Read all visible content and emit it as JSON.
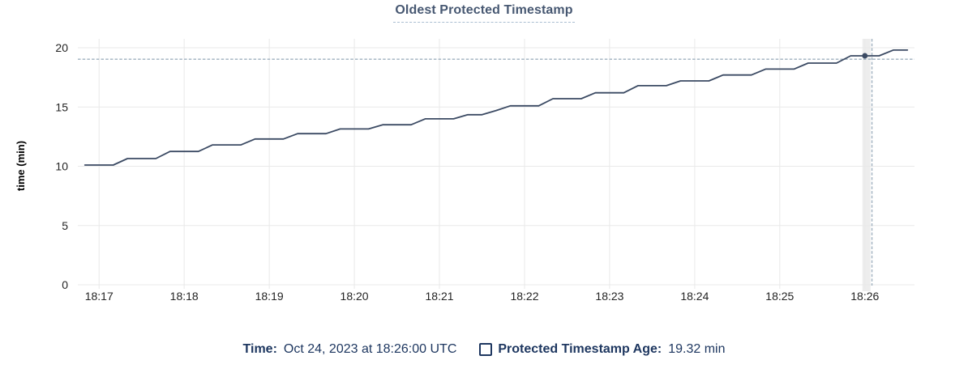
{
  "title": "Oldest Protected Timestamp",
  "footer": {
    "time_label": "Time:",
    "time_value": "Oct 24, 2023 at 18:26:00 UTC",
    "series_label": "Protected Timestamp Age:",
    "series_value": "19.32 min"
  },
  "chart_data": {
    "type": "line",
    "title": "Oldest Protected Timestamp",
    "xlabel": "",
    "ylabel": "time (min)",
    "ylim": [
      0,
      20
    ],
    "y_ticks": [
      0,
      5,
      10,
      15,
      20
    ],
    "x_tick_labels": [
      "18:17",
      "18:18",
      "18:19",
      "18:20",
      "18:21",
      "18:22",
      "18:23",
      "18:24",
      "18:25",
      "18:26"
    ],
    "x_domain": [
      "18:16:45",
      "18:26:35"
    ],
    "grid": true,
    "line_style": "step-ramp",
    "series": [
      {
        "name": "Protected Timestamp Age",
        "unit": "min",
        "start_time": "18:16:50",
        "interval_seconds": 10,
        "values": [
          10.1,
          10.1,
          10.1,
          10.65,
          10.65,
          10.65,
          11.25,
          11.25,
          11.25,
          11.8,
          11.8,
          11.8,
          12.3,
          12.3,
          12.3,
          12.75,
          12.75,
          12.75,
          13.15,
          13.15,
          13.15,
          13.5,
          13.5,
          13.5,
          14.0,
          14.0,
          14.0,
          14.35,
          14.35,
          14.7,
          15.1,
          15.1,
          15.1,
          15.7,
          15.7,
          15.7,
          16.2,
          16.2,
          16.2,
          16.8,
          16.8,
          16.8,
          17.2,
          17.2,
          17.2,
          17.7,
          17.7,
          17.7,
          18.2,
          18.2,
          18.2,
          18.7,
          18.7,
          18.7,
          19.32,
          19.32,
          19.32,
          19.8,
          19.8
        ]
      }
    ],
    "hover_point": {
      "time": "18:26:00",
      "value": 19.32
    },
    "crosshair": {
      "x_time": "18:26:05",
      "y_value": 19.03
    },
    "colors": {
      "line": "#3b4a63",
      "hover_dot": "#3b4a63",
      "crosshair": "#9fb0bf",
      "grid": "#e9e9e9",
      "hover_band": "#ededed",
      "axis_text": "#242424",
      "title_text": "#475872",
      "title_underline": "#a9bdd1",
      "legend_text": "#1e3760",
      "background": "#ffffff"
    }
  }
}
